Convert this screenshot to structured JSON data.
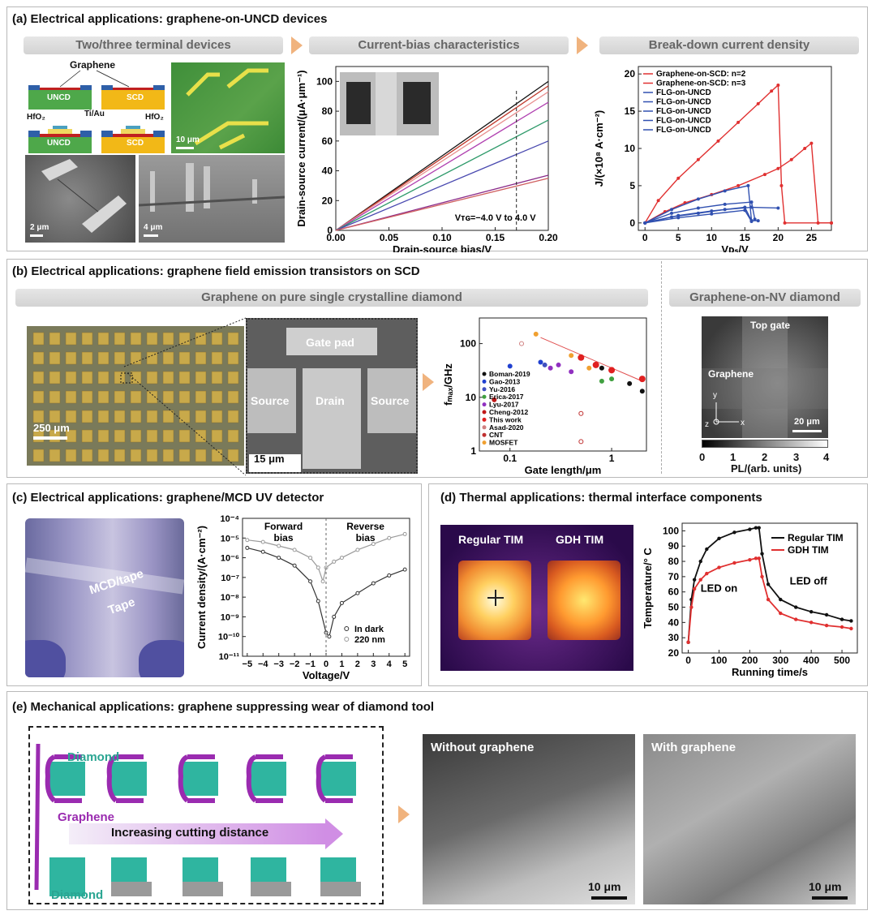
{
  "panel_a": {
    "title": "(a) Electrical applications: graphene-on-UNCD devices",
    "band1": "Two/three terminal devices",
    "band2": "Current-bias characteristics",
    "band3": "Break-down current density",
    "schem": {
      "graphene": "Graphene",
      "uncd": "UNCD",
      "scd": "SCD",
      "hfo2": "HfO₂",
      "tiau": "Ti/Au"
    },
    "scale_10um": "10 μm",
    "scale_2um": "2 μm",
    "scale_4um": "4 μm",
    "iv_ylabel": "Drain-source current/(μA·μm⁻¹)",
    "iv_xlabel": "Drain-source bias/V",
    "iv_annotation": "Vᴛɢ=−4.0 V to 4.0 V",
    "bd_ylabel": "J/(×10⁸ A·cm⁻²)",
    "bd_xlabel": "Vᴅₛ/V"
  },
  "panel_b": {
    "title": "(b) Electrical applications: graphene field emission transistors on SCD",
    "band1": "Graphene on pure single crystalline diamond",
    "band2": "Graphene-on-NV diamond",
    "scale_250": "250 μm",
    "scale_15": "15 μm",
    "scale_20": "20 μm",
    "gate_pad": "Gate pad",
    "source": "Source",
    "drain": "Drain",
    "fmax_ylabel": "fₘₐₓ/GHz",
    "fmax_xlabel": "Gate length/μm",
    "nv_top_gate": "Top gate",
    "nv_graphene": "Graphene",
    "pl_label": "PL/(arb. units)",
    "pl_ticks": [
      "0",
      "1",
      "2",
      "3",
      "4"
    ],
    "axes_y": "y",
    "axes_z": "z",
    "axes_x": "x"
  },
  "panel_c": {
    "title": "(c) Electrical applications: graphene/MCD UV detector",
    "mcd_tape": "MCD/tape",
    "tape": "Tape",
    "forward": "Forward\nbias",
    "reverse": "Reverse\nbias",
    "ylabel": "Current density/(A·cm⁻²)",
    "xlabel": "Voltage/V"
  },
  "panel_d": {
    "title": "(d) Thermal applications: thermal interface components",
    "regular_tim": "Regular TIM",
    "gdh_tim": "GDH TIM",
    "ylabel": "Temperature/° C",
    "xlabel": "Running time/s",
    "led_on": "LED on",
    "led_off": "LED off"
  },
  "panel_e": {
    "title": "(e) Mechanical applications: graphene suppressing wear of diamond tool",
    "diamond": "Diamond",
    "graphene": "Graphene",
    "increasing": "Increasing cutting distance",
    "without": "Without graphene",
    "with": "With graphene",
    "scale_a": "10 μm",
    "scale_b": "10 μm"
  },
  "chart_data": [
    {
      "type": "line",
      "xlabel": "Drain-source bias/V",
      "ylabel": "Drain-source current/(μA·μm⁻¹)",
      "xlim": [
        0,
        0.2
      ],
      "ylim": [
        0,
        110
      ],
      "xticks": [
        "0.00",
        "0.05",
        "0.10",
        "0.15",
        "0.20"
      ],
      "yticks": [
        "0",
        "20",
        "40",
        "60",
        "80",
        "100"
      ],
      "annotation": "Vᴛɢ=−4.0 V to 4.0 V",
      "colors": [
        "#111111",
        "#c0392b",
        "#e89090",
        "#b040b0",
        "#2e9a6a",
        "#4a4ab0",
        "#8a2b8a",
        "#d06060"
      ],
      "series": [
        {
          "x": [
            0,
            0.2
          ],
          "y": [
            0,
            100
          ]
        },
        {
          "x": [
            0,
            0.2
          ],
          "y": [
            0,
            97
          ]
        },
        {
          "x": [
            0,
            0.2
          ],
          "y": [
            0,
            93
          ]
        },
        {
          "x": [
            0,
            0.2
          ],
          "y": [
            0,
            86
          ]
        },
        {
          "x": [
            0,
            0.2
          ],
          "y": [
            0,
            74
          ]
        },
        {
          "x": [
            0,
            0.2
          ],
          "y": [
            0,
            60
          ]
        },
        {
          "x": [
            0,
            0.2
          ],
          "y": [
            0,
            37
          ]
        },
        {
          "x": [
            0,
            0.2
          ],
          "y": [
            0,
            35
          ]
        }
      ]
    },
    {
      "type": "line",
      "xlabel": "Vᴅₛ/V",
      "ylabel": "J/(×10⁸ A·cm⁻²)",
      "xlim": [
        -1,
        28
      ],
      "ylim": [
        -1,
        21
      ],
      "xticks": [
        "0",
        "5",
        "10",
        "15",
        "20",
        "25"
      ],
      "yticks": [
        "0",
        "5",
        "10",
        "15",
        "20"
      ],
      "legend": [
        "Graphene-on-SCD: n=2",
        "Graphene-on-SCD: n=3",
        "FLG-on-UNCD",
        "FLG-on-UNCD",
        "FLG-on-UNCD",
        "FLG-on-UNCD",
        "FLG-on-UNCD"
      ],
      "legend_colors": [
        "#e03030",
        "#e03030",
        "#3050b0",
        "#3050b0",
        "#3050b0",
        "#3050b0",
        "#3050b0"
      ],
      "series": [
        {
          "color": "#e03030",
          "x": [
            0,
            2,
            5,
            8,
            11,
            14,
            17,
            19,
            20,
            20.5,
            21,
            28
          ],
          "y": [
            0,
            3,
            6,
            8.5,
            11,
            13.5,
            16,
            17.7,
            18.5,
            5,
            0,
            0
          ]
        },
        {
          "color": "#e03030",
          "x": [
            0,
            3,
            6,
            10,
            14,
            18,
            20,
            22,
            24,
            25,
            26,
            28
          ],
          "y": [
            0,
            1.5,
            2.7,
            3.8,
            5,
            6.5,
            7.3,
            8.5,
            10,
            10.7,
            0,
            0
          ]
        },
        {
          "color": "#3050b0",
          "x": [
            0,
            4,
            8,
            12,
            15.5,
            16,
            17
          ],
          "y": [
            0,
            1.8,
            3.2,
            4.3,
            5,
            0.3,
            0.3
          ]
        },
        {
          "color": "#3050b0",
          "x": [
            0,
            4,
            8,
            12,
            16,
            16.5
          ],
          "y": [
            0,
            1.3,
            2,
            2.5,
            2.8,
            0.5
          ]
        },
        {
          "color": "#3050b0",
          "x": [
            0,
            4,
            8,
            12,
            16,
            20
          ],
          "y": [
            0,
            0.8,
            1.3,
            1.8,
            2.1,
            2
          ]
        },
        {
          "color": "#3050b0",
          "x": [
            0,
            5,
            10,
            15,
            16
          ],
          "y": [
            0,
            1,
            1.6,
            2.1,
            0.3
          ]
        },
        {
          "color": "#3050b0",
          "x": [
            0,
            5,
            10,
            15,
            16
          ],
          "y": [
            0,
            0.7,
            1.2,
            1.7,
            0.2
          ]
        }
      ]
    },
    {
      "type": "scatter",
      "xlabel": "Gate length/μm",
      "ylabel": "fₘₐₓ/GHz",
      "log_x": true,
      "log_y": true,
      "xticks": [
        "0.1",
        "1"
      ],
      "yticks": [
        "1",
        "10",
        "100"
      ],
      "legend": [
        "Boman-2019",
        "Gao-2013",
        "Yu-2016",
        "Erica-2017",
        "Lyu-2017",
        "Cheng-2012",
        "This work",
        "Asad-2020",
        "CNT",
        "MOSFET"
      ],
      "legend_colors": [
        "#111111",
        "#2040d0",
        "#4050c0",
        "#40a040",
        "#9030c0",
        "#c01818",
        "#e02020",
        "#d08080",
        "#c03030",
        "#f0a030"
      ],
      "points": [
        {
          "s": "This work",
          "x": 0.5,
          "y": 55
        },
        {
          "s": "This work",
          "x": 0.7,
          "y": 40
        },
        {
          "s": "This work",
          "x": 1,
          "y": 32
        },
        {
          "s": "This work",
          "x": 2,
          "y": 22
        },
        {
          "s": "Boman-2019",
          "x": 0.8,
          "y": 35
        },
        {
          "s": "Boman-2019",
          "x": 1.5,
          "y": 18
        },
        {
          "s": "Boman-2019",
          "x": 2,
          "y": 13
        },
        {
          "s": "Gao-2013",
          "x": 0.1,
          "y": 38
        },
        {
          "s": "Gao-2013",
          "x": 0.2,
          "y": 45
        },
        {
          "s": "Yu-2016",
          "x": 0.22,
          "y": 40
        },
        {
          "s": "Erica-2017",
          "x": 0.8,
          "y": 20
        },
        {
          "s": "Erica-2017",
          "x": 1,
          "y": 22
        },
        {
          "s": "Lyu-2017",
          "x": 0.3,
          "y": 40
        },
        {
          "s": "Lyu-2017",
          "x": 0.4,
          "y": 30
        },
        {
          "s": "Lyu-2017",
          "x": 0.25,
          "y": 35
        },
        {
          "s": "Cheng-2012",
          "x": 0.07,
          "y": 9
        },
        {
          "s": "Asad-2020",
          "x": 0.13,
          "y": 100
        },
        {
          "s": "CNT",
          "x": 0.5,
          "y": 5
        },
        {
          "s": "CNT",
          "x": 0.5,
          "y": 1.5
        },
        {
          "s": "MOSFET",
          "x": 0.18,
          "y": 150
        },
        {
          "s": "MOSFET",
          "x": 0.4,
          "y": 60
        },
        {
          "s": "MOSFET",
          "x": 0.6,
          "y": 35
        }
      ]
    },
    {
      "type": "line",
      "xlabel": "Voltage/V",
      "ylabel": "Current density/(A·cm⁻²)",
      "log_y": true,
      "xticks": [
        "−5",
        "−4",
        "−3",
        "−2",
        "−1",
        "0",
        "1",
        "2",
        "3",
        "4",
        "5"
      ],
      "yticks": [
        "10⁻¹¹",
        "10⁻¹⁰",
        "10⁻⁹",
        "10⁻⁸",
        "10⁻⁷",
        "10⁻⁶",
        "10⁻⁵",
        "10⁻⁴"
      ],
      "legend": [
        "In dark",
        "220 nm"
      ],
      "series": [
        {
          "name": "In dark",
          "color": "#333333",
          "x": [
            -5,
            -4,
            -3,
            -2,
            -1,
            -0.5,
            0,
            0.2,
            0.5,
            1,
            2,
            3,
            4,
            5
          ],
          "logy": [
            -5.5,
            -5.7,
            -6.0,
            -6.4,
            -7.2,
            -8.2,
            -9.8,
            -10,
            -9,
            -8.3,
            -7.8,
            -7.3,
            -6.9,
            -6.6
          ]
        },
        {
          "name": "220 nm",
          "color": "#9a9a9a",
          "x": [
            -5,
            -4,
            -3,
            -2,
            -1,
            -0.5,
            -0.2,
            0,
            0.5,
            1,
            2,
            3,
            4,
            5
          ],
          "logy": [
            -5.1,
            -5.2,
            -5.4,
            -5.6,
            -6.0,
            -6.5,
            -7.2,
            -6.5,
            -6.2,
            -6.0,
            -5.6,
            -5.3,
            -5.0,
            -4.8
          ]
        }
      ]
    },
    {
      "type": "line",
      "xlabel": "Running time/s",
      "ylabel": "Temperature/° C",
      "xlim": [
        -20,
        550
      ],
      "ylim": [
        20,
        105
      ],
      "xticks": [
        "0",
        "100",
        "200",
        "300",
        "400",
        "500"
      ],
      "yticks": [
        "20",
        "30",
        "40",
        "50",
        "60",
        "70",
        "80",
        "90",
        "100"
      ],
      "legend": [
        "Regular TIM",
        "GDH TIM"
      ],
      "series": [
        {
          "name": "Regular TIM",
          "color": "#111111",
          "x": [
            0,
            10,
            20,
            40,
            60,
            100,
            150,
            200,
            220,
            230,
            240,
            260,
            300,
            350,
            400,
            450,
            500,
            530
          ],
          "y": [
            27,
            55,
            68,
            80,
            88,
            95,
            99,
            101,
            102,
            102,
            85,
            65,
            55,
            50,
            47,
            45,
            42,
            41
          ]
        },
        {
          "name": "GDH TIM",
          "color": "#e03030",
          "x": [
            0,
            10,
            20,
            40,
            60,
            100,
            150,
            200,
            220,
            230,
            240,
            260,
            300,
            350,
            400,
            450,
            500,
            530
          ],
          "y": [
            27,
            50,
            62,
            68,
            72,
            76,
            79,
            81,
            82,
            82,
            70,
            55,
            46,
            42,
            40,
            38,
            37,
            36
          ]
        }
      ]
    }
  ]
}
